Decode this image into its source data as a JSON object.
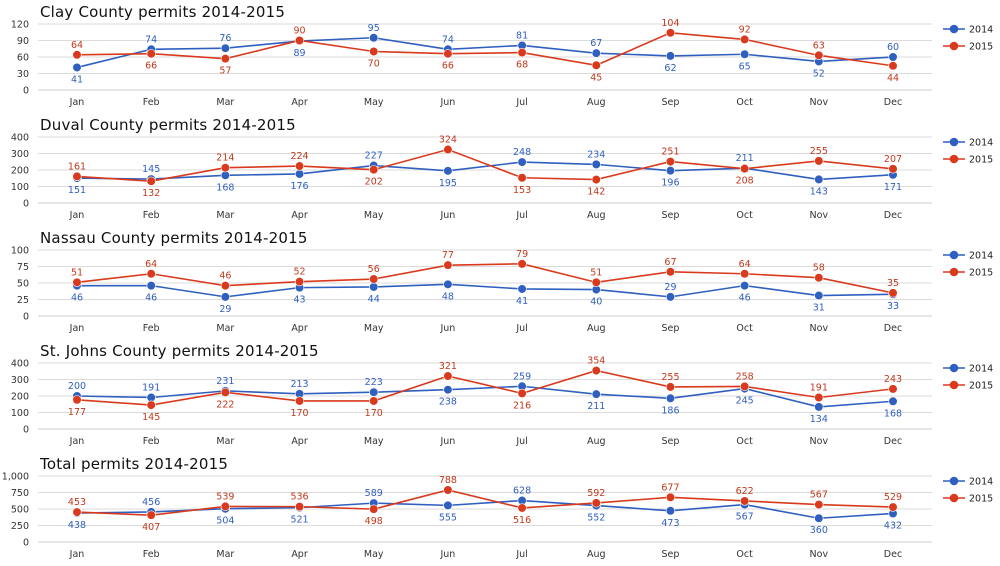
{
  "colors": {
    "s2014": "#2f5fbf",
    "s2015": "#d93a1e",
    "s2014_label": "#2f5fbf",
    "s2015_label": "#c0391d",
    "grid": "#cfcfcf"
  },
  "chart_data": [
    {
      "type": "line",
      "title": "Clay County permits 2014-2015",
      "categories": [
        "Jan",
        "Feb",
        "Mar",
        "Apr",
        "May",
        "Jun",
        "Jul",
        "Aug",
        "Sep",
        "Oct",
        "Nov",
        "Dec"
      ],
      "ylim": [
        0,
        120
      ],
      "yticks": [
        "0",
        "30",
        "60",
        "90",
        "120"
      ],
      "ytick_values": [
        0,
        30,
        60,
        90,
        120
      ],
      "legend": "right",
      "grid": true,
      "series": [
        {
          "name": "2014",
          "values": [
            41,
            74,
            76,
            89,
            95,
            74,
            81,
            67,
            62,
            65,
            52,
            60
          ],
          "labels": [
            "41",
            "74",
            "76",
            "89",
            "95",
            "74",
            "81",
            "67",
            "62",
            "65",
            "52",
            "60"
          ],
          "label_pos": [
            "below",
            "above",
            "above",
            "below",
            "above",
            "above",
            "above",
            "above",
            "below",
            "below",
            "below",
            "above"
          ]
        },
        {
          "name": "2015",
          "values": [
            64,
            66,
            57,
            90,
            70,
            66,
            68,
            45,
            104,
            92,
            63,
            44
          ],
          "labels": [
            "64",
            "66",
            "57",
            "90",
            "70",
            "66",
            "68",
            "45",
            "104",
            "92",
            "63",
            "44"
          ],
          "label_pos": [
            "above",
            "below",
            "below",
            "above",
            "below",
            "below",
            "below",
            "below",
            "above",
            "above",
            "above",
            "below"
          ]
        }
      ]
    },
    {
      "type": "line",
      "title": "Duval County permits 2014-2015",
      "categories": [
        "Jan",
        "Feb",
        "Mar",
        "Apr",
        "May",
        "Jun",
        "Jul",
        "Aug",
        "Sep",
        "Oct",
        "Nov",
        "Dec"
      ],
      "ylim": [
        0,
        400
      ],
      "yticks": [
        "0",
        "100",
        "200",
        "300",
        "400"
      ],
      "ytick_values": [
        0,
        100,
        200,
        300,
        400
      ],
      "legend": "right",
      "grid": true,
      "series": [
        {
          "name": "2014",
          "values": [
            151,
            145,
            168,
            176,
            227,
            195,
            248,
            234,
            196,
            211,
            143,
            171
          ],
          "labels": [
            "151",
            "145",
            "168",
            "176",
            "227",
            "195",
            "248",
            "234",
            "196",
            "211",
            "143",
            "171"
          ],
          "label_pos": [
            "below",
            "above",
            "below",
            "below",
            "above",
            "below",
            "above",
            "above",
            "below",
            "above",
            "below",
            "below"
          ]
        },
        {
          "name": "2015",
          "values": [
            161,
            132,
            214,
            224,
            202,
            324,
            153,
            142,
            251,
            208,
            255,
            207
          ],
          "labels": [
            "161",
            "132",
            "214",
            "224",
            "202",
            "324",
            "153",
            "142",
            "251",
            "208",
            "255",
            "207"
          ],
          "label_pos": [
            "above",
            "below",
            "above",
            "above",
            "below",
            "above",
            "below",
            "below",
            "above",
            "below",
            "above",
            "above"
          ]
        }
      ]
    },
    {
      "type": "line",
      "title": "Nassau County permits 2014-2015",
      "categories": [
        "Jan",
        "Feb",
        "Mar",
        "Apr",
        "May",
        "Jun",
        "Jul",
        "Aug",
        "Sep",
        "Oct",
        "Nov",
        "Dec"
      ],
      "ylim": [
        0,
        100
      ],
      "yticks": [
        "0",
        "25",
        "50",
        "75",
        "100"
      ],
      "ytick_values": [
        0,
        25,
        50,
        75,
        100
      ],
      "legend": "right",
      "grid": true,
      "series": [
        {
          "name": "2014",
          "values": [
            46,
            46,
            29,
            43,
            44,
            48,
            41,
            40,
            29,
            46,
            31,
            33
          ],
          "labels": [
            "46",
            "46",
            "29",
            "43",
            "44",
            "48",
            "41",
            "40",
            "29",
            "46",
            "31",
            "33"
          ],
          "label_pos": [
            "below",
            "below",
            "below",
            "below",
            "below",
            "below",
            "below",
            "below",
            "above",
            "below",
            "below",
            "below"
          ]
        },
        {
          "name": "2015",
          "values": [
            51,
            64,
            46,
            52,
            56,
            77,
            79,
            51,
            67,
            64,
            58,
            35
          ],
          "labels": [
            "51",
            "64",
            "46",
            "52",
            "56",
            "77",
            "79",
            "51",
            "67",
            "64",
            "58",
            "35"
          ],
          "label_pos": [
            "above",
            "above",
            "above",
            "above",
            "above",
            "above",
            "above",
            "above",
            "above",
            "above",
            "above",
            "above"
          ]
        }
      ]
    },
    {
      "type": "line",
      "title": "St. Johns County permits 2014-2015",
      "categories": [
        "Jan",
        "Feb",
        "Mar",
        "Apr",
        "May",
        "Jun",
        "Jul",
        "Aug",
        "Sep",
        "Oct",
        "Nov",
        "Dec"
      ],
      "ylim": [
        0,
        400
      ],
      "yticks": [
        "0",
        "100",
        "200",
        "300",
        "400"
      ],
      "ytick_values": [
        0,
        100,
        200,
        300,
        400
      ],
      "legend": "right",
      "grid": true,
      "series": [
        {
          "name": "2014",
          "values": [
            200,
            191,
            231,
            213,
            223,
            238,
            259,
            211,
            186,
            245,
            134,
            168
          ],
          "labels": [
            "200",
            "191",
            "231",
            "213",
            "223",
            "238",
            "259",
            "211",
            "186",
            "245",
            "134",
            "168"
          ],
          "label_pos": [
            "above",
            "above",
            "above",
            "above",
            "above",
            "below",
            "above",
            "below",
            "below",
            "below",
            "below",
            "below"
          ]
        },
        {
          "name": "2015",
          "values": [
            177,
            145,
            222,
            170,
            170,
            321,
            216,
            354,
            255,
            258,
            191,
            243
          ],
          "labels": [
            "177",
            "145",
            "222",
            "170",
            "170",
            "321",
            "216",
            "354",
            "255",
            "258",
            "191",
            "243"
          ],
          "label_pos": [
            "below",
            "below",
            "below",
            "below",
            "below",
            "above",
            "below",
            "above",
            "above",
            "above",
            "above",
            "above"
          ]
        }
      ]
    },
    {
      "type": "line",
      "title": "Total permits 2014-2015",
      "categories": [
        "Jan",
        "Feb",
        "Mar",
        "Apr",
        "May",
        "Jun",
        "Jul",
        "Aug",
        "Sep",
        "Oct",
        "Nov",
        "Dec"
      ],
      "ylim": [
        0,
        1000
      ],
      "yticks": [
        "0",
        "250",
        "500",
        "750",
        "1,000"
      ],
      "ytick_values": [
        0,
        250,
        500,
        750,
        1000
      ],
      "legend": "right",
      "grid": true,
      "series": [
        {
          "name": "2014",
          "values": [
            438,
            456,
            504,
            521,
            589,
            555,
            628,
            552,
            473,
            567,
            360,
            432
          ],
          "labels": [
            "438",
            "456",
            "504",
            "521",
            "589",
            "555",
            "628",
            "552",
            "473",
            "567",
            "360",
            "432"
          ],
          "label_pos": [
            "below",
            "above",
            "below",
            "below",
            "above",
            "below",
            "above",
            "below",
            "below",
            "below",
            "below",
            "below"
          ]
        },
        {
          "name": "2015",
          "values": [
            453,
            407,
            539,
            536,
            498,
            788,
            516,
            592,
            677,
            622,
            567,
            529
          ],
          "labels": [
            "453",
            "407",
            "539",
            "536",
            "498",
            "788",
            "516",
            "592",
            "677",
            "622",
            "567",
            "529"
          ],
          "label_pos": [
            "above",
            "below",
            "above",
            "above",
            "below",
            "above",
            "below",
            "above",
            "above",
            "above",
            "above",
            "above"
          ]
        }
      ]
    }
  ]
}
